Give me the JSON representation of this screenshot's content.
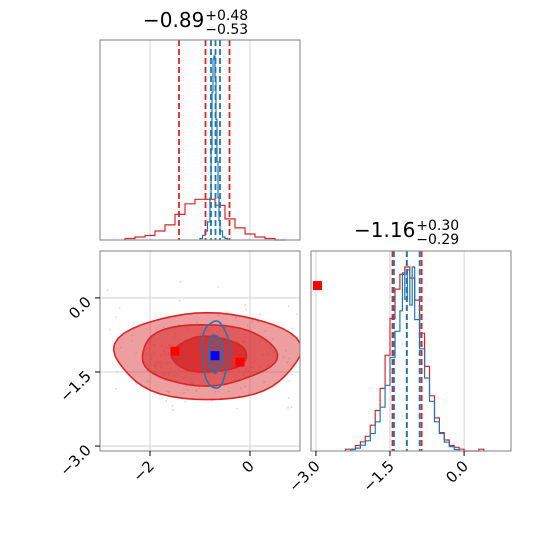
{
  "chart_data": {
    "type": "scatter",
    "parameters": 2,
    "titles": [
      {
        "median": "−0.89",
        "plus": "+0.48",
        "minus": "−0.53"
      },
      {
        "median": "−1.16",
        "plus": "+0.30",
        "minus": "−0.29"
      }
    ],
    "param0": {
      "range": [
        -3.0,
        1.0
      ],
      "ticks": [
        -2,
        0
      ],
      "tick_labels": [
        "−2",
        "0"
      ],
      "grid": [
        -2,
        0
      ],
      "red_quantiles": [
        -1.42,
        -0.89,
        -0.41
      ],
      "blue_quantiles": [
        -0.78,
        -0.69,
        -0.6
      ]
    },
    "param1": {
      "range": [
        -3.1,
        0.95
      ],
      "ticks": [
        -3.0,
        -1.5,
        0.0
      ],
      "tick_labels": [
        "−3.0",
        "−1.5",
        "0.0"
      ],
      "grid": [
        -3.0,
        -1.5,
        0.0
      ],
      "red_quantiles": [
        -1.45,
        -1.16,
        -0.86
      ],
      "blue_quantiles": [
        -1.42,
        -1.16,
        -0.9
      ]
    },
    "hist_red_1d_param0": {
      "bin_edges": [
        -2.5,
        -2.3,
        -2.1,
        -1.9,
        -1.7,
        -1.5,
        -1.3,
        -1.1,
        -0.9,
        -0.7,
        -0.5,
        -0.3,
        -0.1,
        0.1,
        0.3,
        0.5,
        0.7
      ],
      "counts": [
        1,
        2,
        3,
        6,
        10,
        17,
        24,
        27,
        27,
        23,
        14,
        8,
        4,
        2,
        1,
        0
      ]
    },
    "hist_blue_1d_param0": {
      "bin_edges": [
        -1.0,
        -0.95,
        -0.9,
        -0.85,
        -0.8,
        -0.78,
        -0.76,
        -0.74,
        -0.72,
        -0.7,
        -0.68,
        -0.66,
        -0.64,
        -0.62,
        -0.6,
        -0.55,
        -0.5,
        -0.45
      ],
      "counts": [
        1,
        3,
        6,
        12,
        28,
        60,
        98,
        120,
        122,
        108,
        80,
        52,
        28,
        13,
        6,
        2,
        1
      ]
    },
    "hist_red_1d_param1": {
      "bin_edges": [
        -2.4,
        -2.3,
        -2.2,
        -2.1,
        -2.0,
        -1.9,
        -1.8,
        -1.7,
        -1.6,
        -1.5,
        -1.4,
        -1.3,
        -1.2,
        -1.1,
        -1.0,
        -0.9,
        -0.8,
        -0.7,
        -0.6,
        -0.5,
        -0.4,
        -0.3,
        -0.2,
        -0.1,
        0.0,
        0.1,
        0.2,
        0.3,
        0.4
      ],
      "counts": [
        1,
        1,
        3,
        5,
        8,
        14,
        22,
        34,
        52,
        72,
        88,
        96,
        100,
        94,
        82,
        64,
        46,
        30,
        18,
        10,
        6,
        3,
        2,
        1,
        0,
        0,
        0,
        1
      ]
    },
    "hist_blue_1d_param1": {
      "bin_edges": [
        -2.3,
        -2.2,
        -2.1,
        -2.0,
        -1.9,
        -1.8,
        -1.7,
        -1.6,
        -1.5,
        -1.4,
        -1.3,
        -1.25,
        -1.2,
        -1.15,
        -1.1,
        -1.05,
        -1.0,
        -0.9,
        -0.8,
        -0.7,
        -0.6,
        -0.5,
        -0.4,
        -0.3,
        -0.2,
        -0.1
      ],
      "counts": [
        1,
        2,
        4,
        7,
        12,
        20,
        30,
        45,
        64,
        82,
        96,
        122,
        104,
        124,
        100,
        126,
        90,
        70,
        50,
        34,
        20,
        12,
        6,
        3,
        1
      ]
    },
    "scatter_red_cloud_center": [
      -0.89,
      -1.16
    ],
    "contours_red": [
      {
        "level": "outer",
        "cx": -0.85,
        "cy": -1.17,
        "rx": 1.85,
        "ry": 0.88
      },
      {
        "level": "middle",
        "cx": -0.85,
        "cy": -1.15,
        "rx": 1.35,
        "ry": 0.62
      },
      {
        "level": "inner",
        "cx": -0.82,
        "cy": -1.15,
        "rx": 0.75,
        "ry": 0.36
      }
    ],
    "contours_blue": [
      {
        "level": "outer",
        "cx": -0.69,
        "cy": -1.13,
        "rx": 0.27,
        "ry": 0.68
      },
      {
        "level": "inner",
        "cx": -0.69,
        "cy": -1.13,
        "rx": 0.15,
        "ry": 0.38
      }
    ],
    "markers": [
      {
        "x": 1.35,
        "y": 0.25,
        "color": "#ff0000"
      },
      {
        "x": -1.5,
        "y": -1.08,
        "color": "#ff0000"
      },
      {
        "x": -0.2,
        "y": -1.3,
        "color": "#ff0000"
      },
      {
        "x": -0.7,
        "y": -1.17,
        "color": "#0000ff"
      }
    ],
    "colors": {
      "red": "#d62728",
      "blue": "#1f77b4",
      "grid": "#c8c8c8",
      "frame": "#808080"
    }
  }
}
